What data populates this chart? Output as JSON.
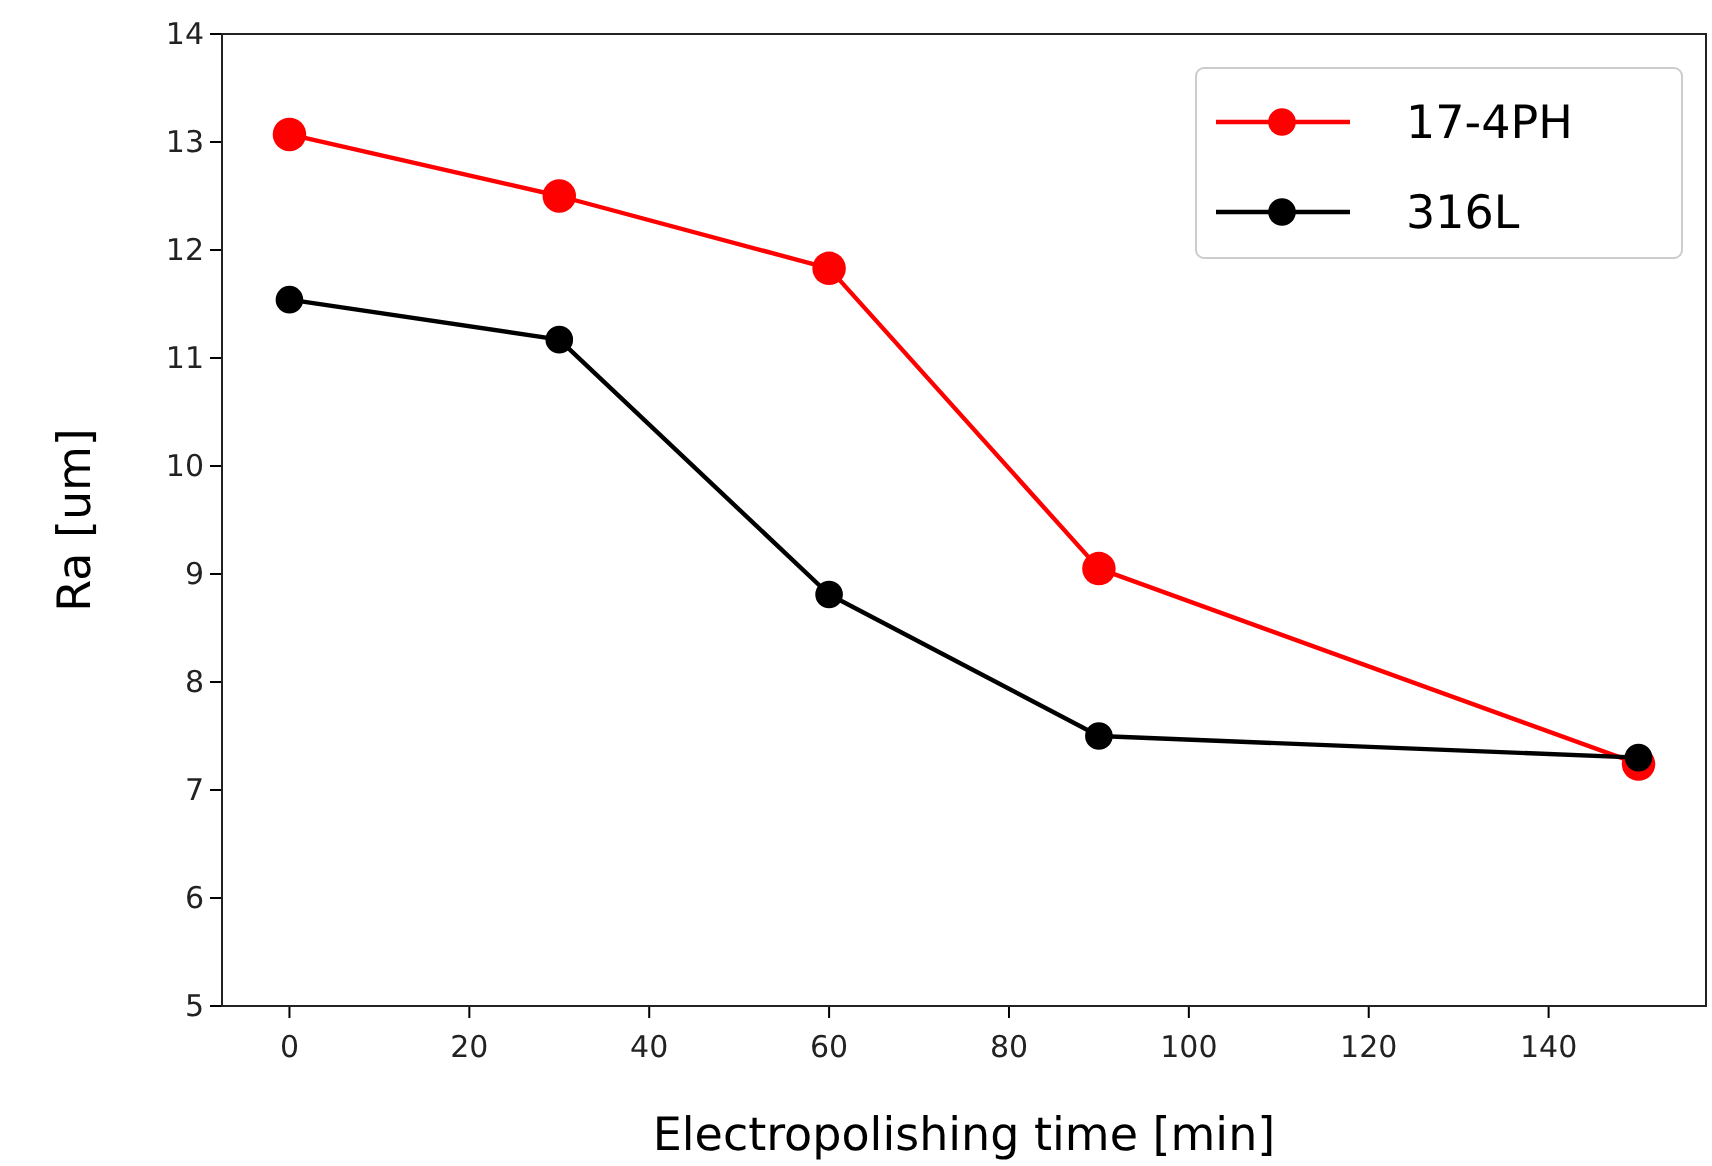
{
  "chart_data": {
    "type": "line",
    "xlabel": "Electropolishing time [min]",
    "ylabel": "Ra [um]",
    "x": [
      0,
      30,
      60,
      90,
      150
    ],
    "series": [
      {
        "name": "17-4PH",
        "color": "#ff0000",
        "values": [
          13.07,
          12.5,
          11.83,
          9.05,
          7.24
        ]
      },
      {
        "name": "316L",
        "color": "#000000",
        "values": [
          11.54,
          11.17,
          8.81,
          7.5,
          7.3
        ]
      }
    ],
    "xlim": [
      -7.5,
      157.5
    ],
    "xticks": [
      0,
      20,
      40,
      60,
      80,
      100,
      120,
      140
    ],
    "ylim": [
      5,
      14
    ],
    "yticks": [
      5,
      6,
      7,
      8,
      9,
      10,
      11,
      12,
      13,
      14
    ],
    "grid": false,
    "legend": "top right",
    "marker": "circle",
    "line_style": "solid"
  }
}
